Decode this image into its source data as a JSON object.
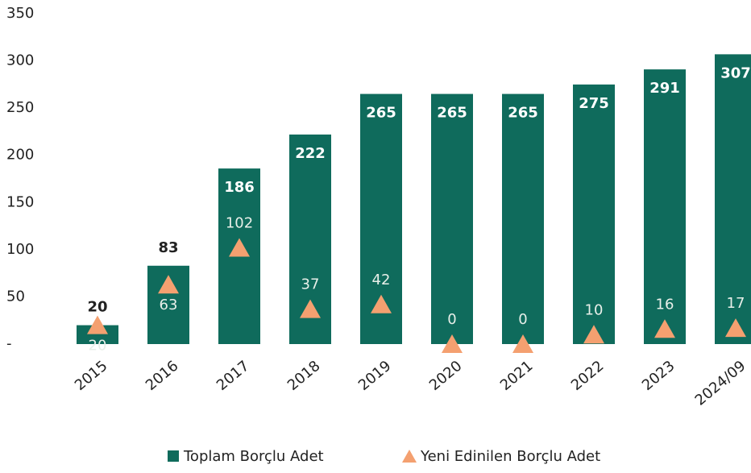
{
  "chart_data": {
    "type": "bar",
    "categories": [
      "2015",
      "2016",
      "2017",
      "2018",
      "2019",
      "2020",
      "2021",
      "2022",
      "2023",
      "2024/09"
    ],
    "series": [
      {
        "name": "Toplam Borçlu Adet",
        "color": "#0f6b5c",
        "type": "bar",
        "values": [
          20,
          83,
          186,
          222,
          265,
          265,
          265,
          275,
          291,
          307
        ]
      },
      {
        "name": "Yeni Edinilen Borçlu Adet",
        "color": "#f4a070",
        "type": "marker",
        "values": [
          20,
          63,
          102,
          37,
          42,
          0,
          0,
          10,
          16,
          17
        ]
      }
    ],
    "ylim": [
      0,
      350
    ],
    "yticks": [
      {
        "value": 0,
        "label": "-"
      },
      50,
      100,
      150,
      200,
      250,
      300,
      350
    ],
    "grid": false,
    "legend": "bottom"
  }
}
